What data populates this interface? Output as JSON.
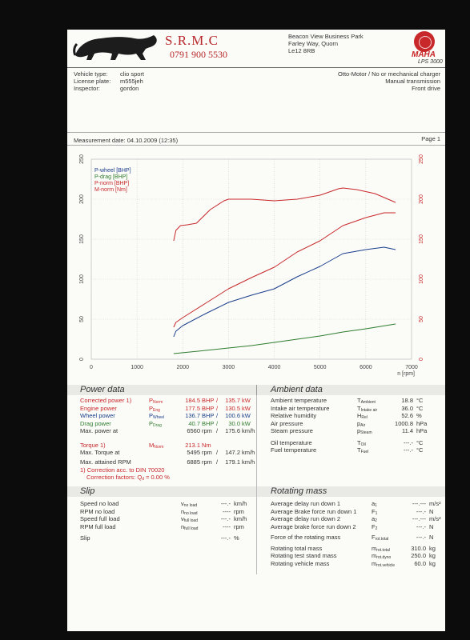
{
  "header": {
    "company": "S.R.M.C",
    "phone": "0791 900 5530",
    "address": [
      "Beacon View Business Park",
      "Farley Way, Quorn",
      "Le12 8RB"
    ],
    "brand": "MAHA",
    "brand_model": "LPS 3000"
  },
  "vehicle": {
    "labels": [
      "Vehicle type:",
      "License plate:",
      "Inspector:"
    ],
    "values": [
      "clio sport",
      "m555jeh",
      "gordon"
    ],
    "right": [
      "Otto-Motor / No or mechanical charger",
      "Manual transmission",
      "Front drive"
    ]
  },
  "measurement": {
    "date": "Measurement date: 04.10.2009 (12:35)",
    "page": "Page 1"
  },
  "chart_data": {
    "type": "line",
    "x_label": "n [rpm]",
    "x_ticks": [
      "0",
      "1000",
      "2000",
      "3000",
      "4000",
      "5000",
      "6000",
      "7000"
    ],
    "y_left_ticks": [
      "0",
      "50",
      "100",
      "150",
      "200",
      "250"
    ],
    "y_right_ticks": [
      "0",
      "50",
      "100",
      "150",
      "200",
      "250"
    ],
    "xlim": [
      0,
      7000
    ],
    "ylim": [
      0,
      250
    ],
    "legend_position": "top-left",
    "series": [
      {
        "name": "P-wheel [BHP]",
        "color": "#1a3e8c",
        "points": [
          [
            1800,
            28
          ],
          [
            1850,
            35
          ],
          [
            2000,
            42
          ],
          [
            2500,
            57
          ],
          [
            3000,
            71
          ],
          [
            3500,
            80
          ],
          [
            4000,
            88
          ],
          [
            4500,
            103
          ],
          [
            5000,
            116
          ],
          [
            5500,
            132
          ],
          [
            6000,
            137
          ],
          [
            6400,
            140
          ],
          [
            6650,
            137
          ]
        ]
      },
      {
        "name": "P-drag [BHP]",
        "color": "#2f7d2f",
        "points": [
          [
            1800,
            7
          ],
          [
            2500,
            11
          ],
          [
            3000,
            14
          ],
          [
            3500,
            17
          ],
          [
            4000,
            21
          ],
          [
            4500,
            25
          ],
          [
            5000,
            29
          ],
          [
            5500,
            34
          ],
          [
            6000,
            38
          ],
          [
            6650,
            44
          ]
        ]
      },
      {
        "name": "P-norm [BHP]",
        "color": "#c8282a",
        "points": [
          [
            1800,
            40
          ],
          [
            1850,
            46
          ],
          [
            2000,
            52
          ],
          [
            2500,
            70
          ],
          [
            3000,
            88
          ],
          [
            3500,
            102
          ],
          [
            4000,
            115
          ],
          [
            4500,
            134
          ],
          [
            5000,
            148
          ],
          [
            5500,
            167
          ],
          [
            6000,
            177
          ],
          [
            6400,
            183
          ],
          [
            6650,
            183
          ]
        ]
      },
      {
        "name": "M-norm [Nm]",
        "color": "#c8282a",
        "points": [
          [
            1800,
            148
          ],
          [
            1850,
            161
          ],
          [
            1950,
            167
          ],
          [
            2100,
            168
          ],
          [
            2300,
            170
          ],
          [
            2600,
            187
          ],
          [
            2900,
            198
          ],
          [
            3000,
            200
          ],
          [
            3500,
            200
          ],
          [
            4000,
            198
          ],
          [
            4500,
            200
          ],
          [
            5000,
            205
          ],
          [
            5400,
            213
          ],
          [
            5500,
            214
          ],
          [
            5800,
            212
          ],
          [
            6200,
            207
          ],
          [
            6650,
            196
          ]
        ]
      }
    ]
  },
  "power": {
    "title": "Power data",
    "rows": [
      {
        "label": "Corrected power 1)",
        "sym": "P",
        "sub": "Norm",
        "v1": "184.5",
        "u1": "BHP",
        "v2": "135.7",
        "u2": "kW",
        "color": "red"
      },
      {
        "label": "Engine power",
        "sym": "P",
        "sub": "Eng",
        "v1": "177.5",
        "u1": "BHP",
        "v2": "130.5",
        "u2": "kW",
        "color": "red"
      },
      {
        "label": "Wheel power",
        "sym": "P",
        "sub": "Wheel",
        "v1": "136.7",
        "u1": "BHP",
        "v2": "100.6",
        "u2": "kW",
        "color": "blue"
      },
      {
        "label": "Drag power",
        "sym": "P",
        "sub": "Drag",
        "v1": "40.7",
        "u1": "BHP",
        "v2": "30.0",
        "u2": "kW",
        "color": "green"
      },
      {
        "label": "Max. power at",
        "sym": "",
        "sub": "",
        "v1": "6560",
        "u1": "rpm",
        "v2": "175.6",
        "u2": "km/h",
        "color": ""
      }
    ],
    "torque": {
      "label": "Torque 1)",
      "sym": "M",
      "sub": "Norm",
      "v1": "213.1",
      "u1": "Nm"
    },
    "torque_at": {
      "label": "Max. Torque at",
      "v1": "5495",
      "u1": "rpm",
      "v2": "147.2",
      "u2": "km/h"
    },
    "max_rpm": {
      "label": "Max. attained RPM",
      "v1": "6885",
      "u1": "rpm",
      "v2": "179.1",
      "u2": "km/h"
    },
    "correction": "1) Correction acc. to DIN 70020",
    "factors": "Correction factors: Q",
    "factors_sub": "d",
    "factors_val": " =  0.00 %"
  },
  "ambient": {
    "title": "Ambient data",
    "rows": [
      {
        "label": "Ambient temperature",
        "sym": "T",
        "sub": "Ambient",
        "v": "18.8",
        "u": "°C"
      },
      {
        "label": "Intake air temperature",
        "sym": "T",
        "sub": "Intake air",
        "v": "36.0",
        "u": "°C"
      },
      {
        "label": "Relative humidity",
        "sym": "H",
        "sub": "Rel",
        "v": "52.6",
        "u": "%"
      },
      {
        "label": "Air pressure",
        "sym": "p",
        "sub": "Air",
        "v": "1000.8",
        "u": "hPa"
      },
      {
        "label": "Steam pressure",
        "sym": "p",
        "sub": "Steam",
        "v": "11.4",
        "u": "hPa"
      },
      {
        "label": "Oil temperature",
        "sym": "T",
        "sub": "Oil",
        "v": "---.-",
        "u": "°C"
      },
      {
        "label": "Fuel temperature",
        "sym": "T",
        "sub": "Fuel",
        "v": "---.-",
        "u": "°C"
      }
    ]
  },
  "slip": {
    "title": "Slip",
    "rows": [
      {
        "label": "Speed no load",
        "sym": "v",
        "sub": "no load",
        "v": "---.-",
        "u": "km/h"
      },
      {
        "label": "RPM no load",
        "sym": "n",
        "sub": "no load",
        "v": "----",
        "u": "rpm"
      },
      {
        "label": "Speed full load",
        "sym": "v",
        "sub": "full load",
        "v": "---.-",
        "u": "km/h"
      },
      {
        "label": "RPM full load",
        "sym": "n",
        "sub": "full load",
        "v": "----",
        "u": "rpm"
      },
      {
        "label": "Slip",
        "sym": "",
        "sub": "",
        "v": "---.-",
        "u": "%"
      }
    ]
  },
  "mass": {
    "title": "Rotating mass",
    "rows": [
      {
        "label": "Average delay run down 1",
        "sym": "a",
        "sub": "1",
        "v": "---.---",
        "u": "m/s²"
      },
      {
        "label": "Average Brake force run down 1",
        "sym": "F",
        "sub": "1",
        "v": "---.-",
        "u": "N"
      },
      {
        "label": "Average delay run down 2",
        "sym": "a",
        "sub": "2",
        "v": "---.---",
        "u": "m/s²"
      },
      {
        "label": "Average brake force run down 2",
        "sym": "F",
        "sub": "2",
        "v": "---.-",
        "u": "N"
      },
      {
        "label": "Force of the rotating mass",
        "sym": "F",
        "sub": "rot.total",
        "v": "---.-",
        "u": "N"
      },
      {
        "label": "Rotating total mass",
        "sym": "m",
        "sub": "rot.total",
        "v": "310.0",
        "u": "kg"
      },
      {
        "label": "Rotating test stand mass",
        "sym": "m",
        "sub": "rot.dyno",
        "v": "250.0",
        "u": "kg"
      },
      {
        "label": "Rotating vehicle mass",
        "sym": "m",
        "sub": "rot.vehicle",
        "v": "60.0",
        "u": "kg"
      }
    ]
  }
}
